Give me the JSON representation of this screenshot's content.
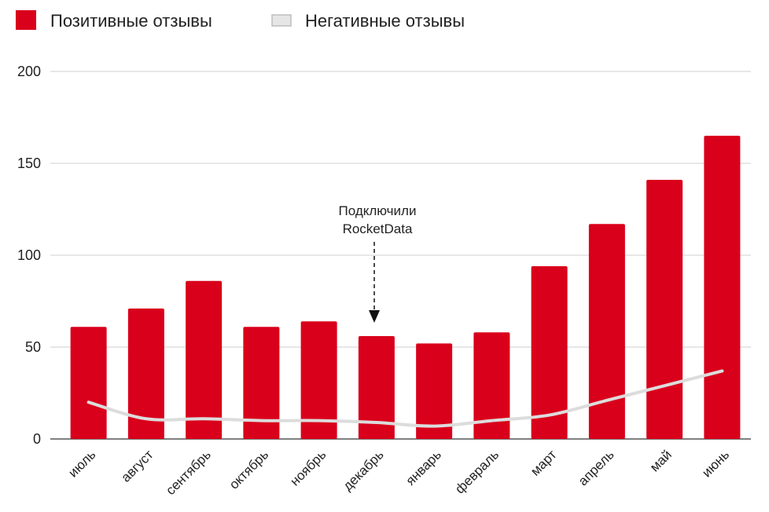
{
  "chart_data": {
    "type": "bar",
    "categories": [
      "июль",
      "август",
      "сентябрь",
      "октябрь",
      "ноябрь",
      "декабрь",
      "январь",
      "февраль",
      "март",
      "апрель",
      "май",
      "июнь"
    ],
    "series": [
      {
        "name": "Позитивные отзывы",
        "type": "bar",
        "color": "#d9001b",
        "values": [
          61,
          71,
          86,
          61,
          64,
          56,
          52,
          58,
          94,
          117,
          141,
          165
        ]
      },
      {
        "name": "Негативные отзывы",
        "type": "line",
        "color": "#d9d9d9",
        "values": [
          20,
          11,
          11,
          10,
          10,
          9,
          7,
          10,
          13,
          21,
          29,
          37
        ]
      }
    ],
    "ylim": [
      0,
      200
    ],
    "yticks": [
      0,
      50,
      100,
      150,
      200
    ],
    "grid": true,
    "legend": "top-left",
    "annotation": {
      "text_line1": "Подключили",
      "text_line2": "RocketData",
      "category": "декабрь"
    }
  }
}
